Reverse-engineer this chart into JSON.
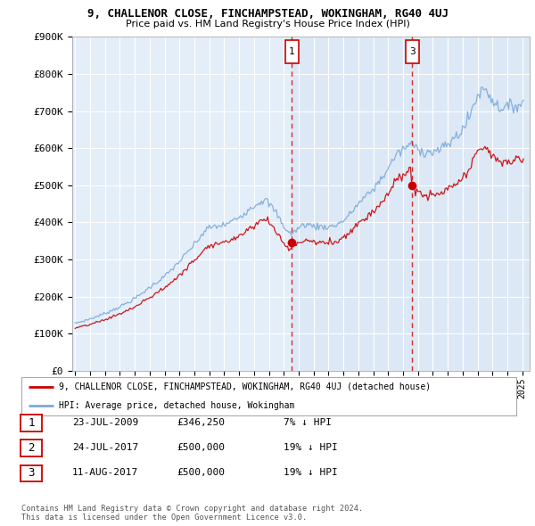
{
  "title1": "9, CHALLENOR CLOSE, FINCHAMPSTEAD, WOKINGHAM, RG40 4UJ",
  "title2": "Price paid vs. HM Land Registry's House Price Index (HPI)",
  "ylabel_ticks": [
    "£0",
    "£100K",
    "£200K",
    "£300K",
    "£400K",
    "£500K",
    "£600K",
    "£700K",
    "£800K",
    "£900K"
  ],
  "ylim": [
    0,
    900000
  ],
  "xlim_start": 1994.8,
  "xlim_end": 2025.5,
  "xtick_years": [
    1995,
    1996,
    1997,
    1998,
    1999,
    2000,
    2001,
    2002,
    2003,
    2004,
    2005,
    2006,
    2007,
    2008,
    2009,
    2010,
    2011,
    2012,
    2013,
    2014,
    2015,
    2016,
    2017,
    2018,
    2019,
    2020,
    2021,
    2022,
    2023,
    2024,
    2025
  ],
  "vline1_x": 2009.55,
  "vline2_x": 2017.62,
  "red_line_color": "#cc0000",
  "blue_line_color": "#7aaadd",
  "highlight_color": "#dce8f5",
  "marker1_x": 2009.55,
  "marker1_y": 346250,
  "marker2_x": 2017.62,
  "marker2_y": 500000,
  "legend_label_red": "9, CHALLENOR CLOSE, FINCHAMPSTEAD, WOKINGHAM, RG40 4UJ (detached house)",
  "legend_label_blue": "HPI: Average price, detached house, Wokingham",
  "table_rows": [
    {
      "num": "1",
      "date": "23-JUL-2009",
      "price": "£346,250",
      "change": "7% ↓ HPI"
    },
    {
      "num": "2",
      "date": "24-JUL-2017",
      "price": "£500,000",
      "change": "19% ↓ HPI"
    },
    {
      "num": "3",
      "date": "11-AUG-2017",
      "price": "£500,000",
      "change": "19% ↓ HPI"
    }
  ],
  "footnote": "Contains HM Land Registry data © Crown copyright and database right 2024.\nThis data is licensed under the Open Government Licence v3.0.",
  "background_color": "#ffffff",
  "plot_bg_color": "#e4eef8",
  "grid_color": "#ffffff"
}
